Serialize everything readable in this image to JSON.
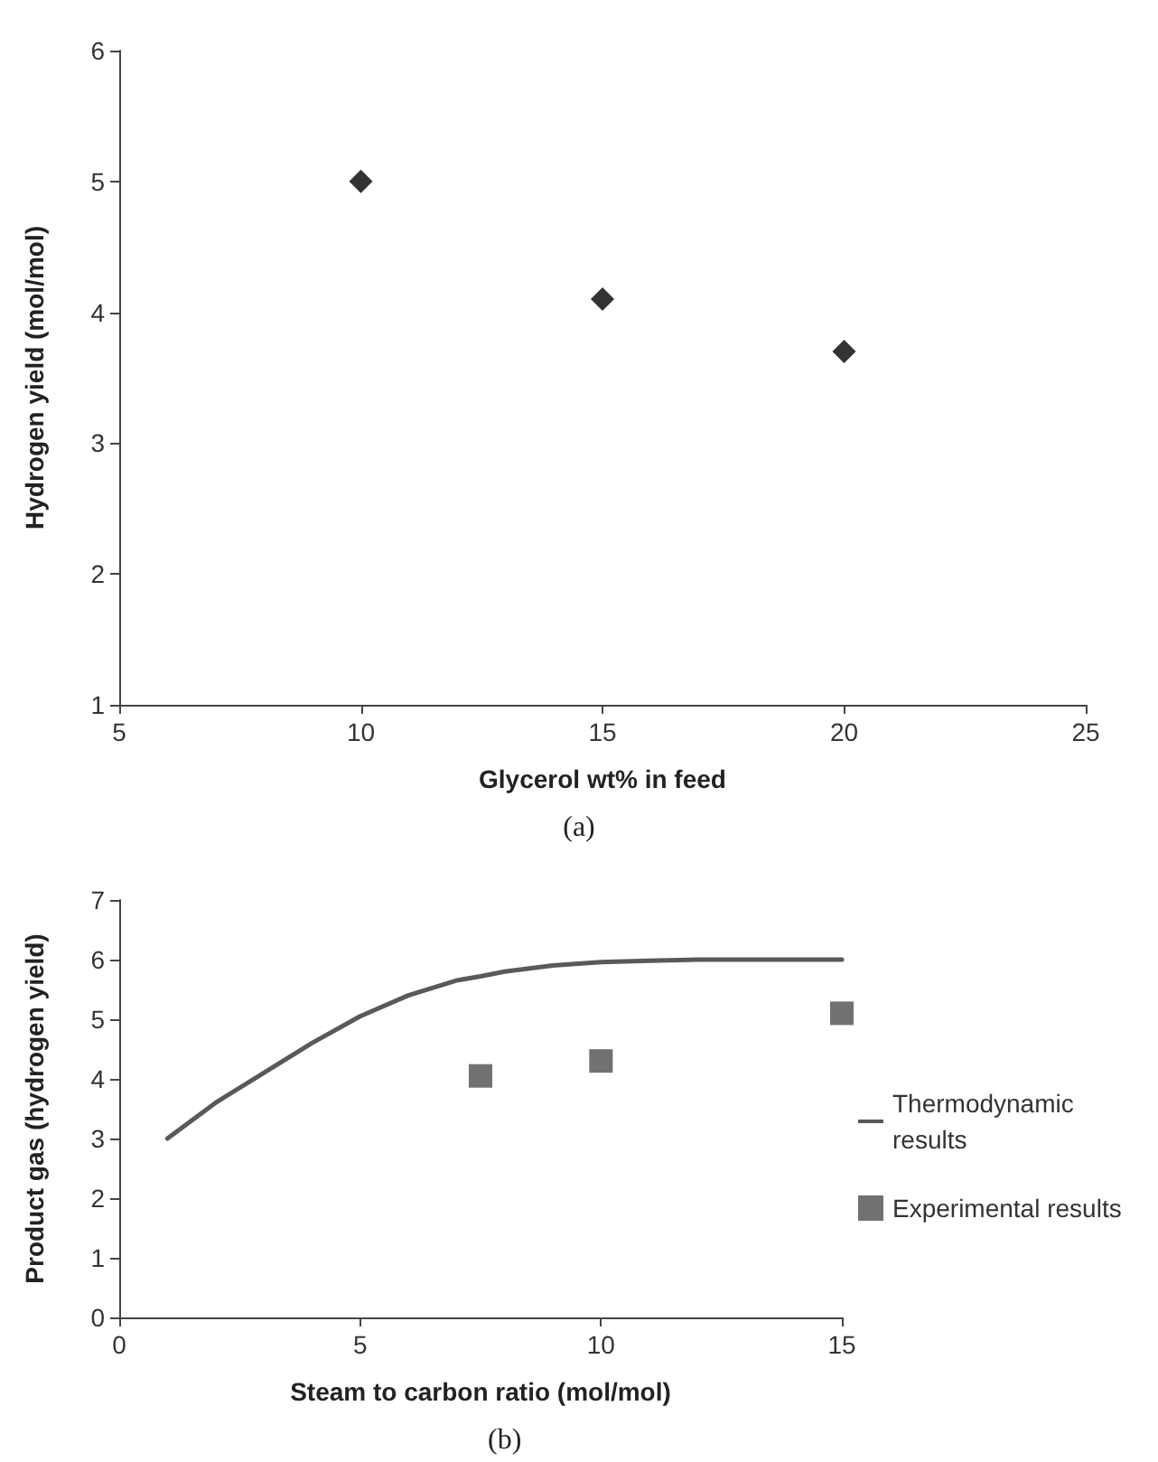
{
  "chart_data": [
    {
      "type": "scatter",
      "xlabel": "Glycerol wt% in feed",
      "ylabel": "Hydrogen yield (mol/mol)",
      "x": [
        10,
        15,
        20
      ],
      "values": [
        5,
        4.1,
        3.7
      ],
      "color": "#000000",
      "marker": "diamond",
      "xlim": [
        5,
        25
      ],
      "xticks": [
        5,
        10,
        15,
        20,
        25
      ],
      "ylim": [
        1,
        6
      ],
      "yticks": [
        1,
        2,
        3,
        4,
        5,
        6
      ],
      "annotations": [
        "(a)"
      ]
    },
    {
      "type": "line",
      "xlabel": "Steam to carbon ratio (mol/mol)",
      "ylabel": "Product gas (hydrogen yield)",
      "xlim": [
        0,
        15
      ],
      "xticks": [
        0,
        5,
        10,
        15
      ],
      "ylim": [
        0,
        7
      ],
      "yticks": [
        0,
        1,
        2,
        3,
        4,
        5,
        6,
        7
      ],
      "legend": "right",
      "annotations": [
        "(b)"
      ],
      "series": [
        {
          "name": "Thermodynamic results",
          "type": "line",
          "color": "#595959",
          "marker": "none",
          "x": [
            1,
            2,
            3,
            4,
            5,
            6,
            7,
            7.5,
            8,
            9,
            10,
            11,
            12,
            13,
            14,
            15
          ],
          "values": [
            3.0,
            3.6,
            4.1,
            4.6,
            5.05,
            5.4,
            5.65,
            5.72,
            5.8,
            5.9,
            5.96,
            5.98,
            6.0,
            6.0,
            6.0,
            6.0
          ]
        },
        {
          "name": "Experimental results",
          "type": "scatter",
          "color": "#4d4d4d",
          "marker": "square",
          "x": [
            7.5,
            10,
            15
          ],
          "values": [
            4.05,
            4.3,
            5.1
          ]
        }
      ]
    }
  ]
}
